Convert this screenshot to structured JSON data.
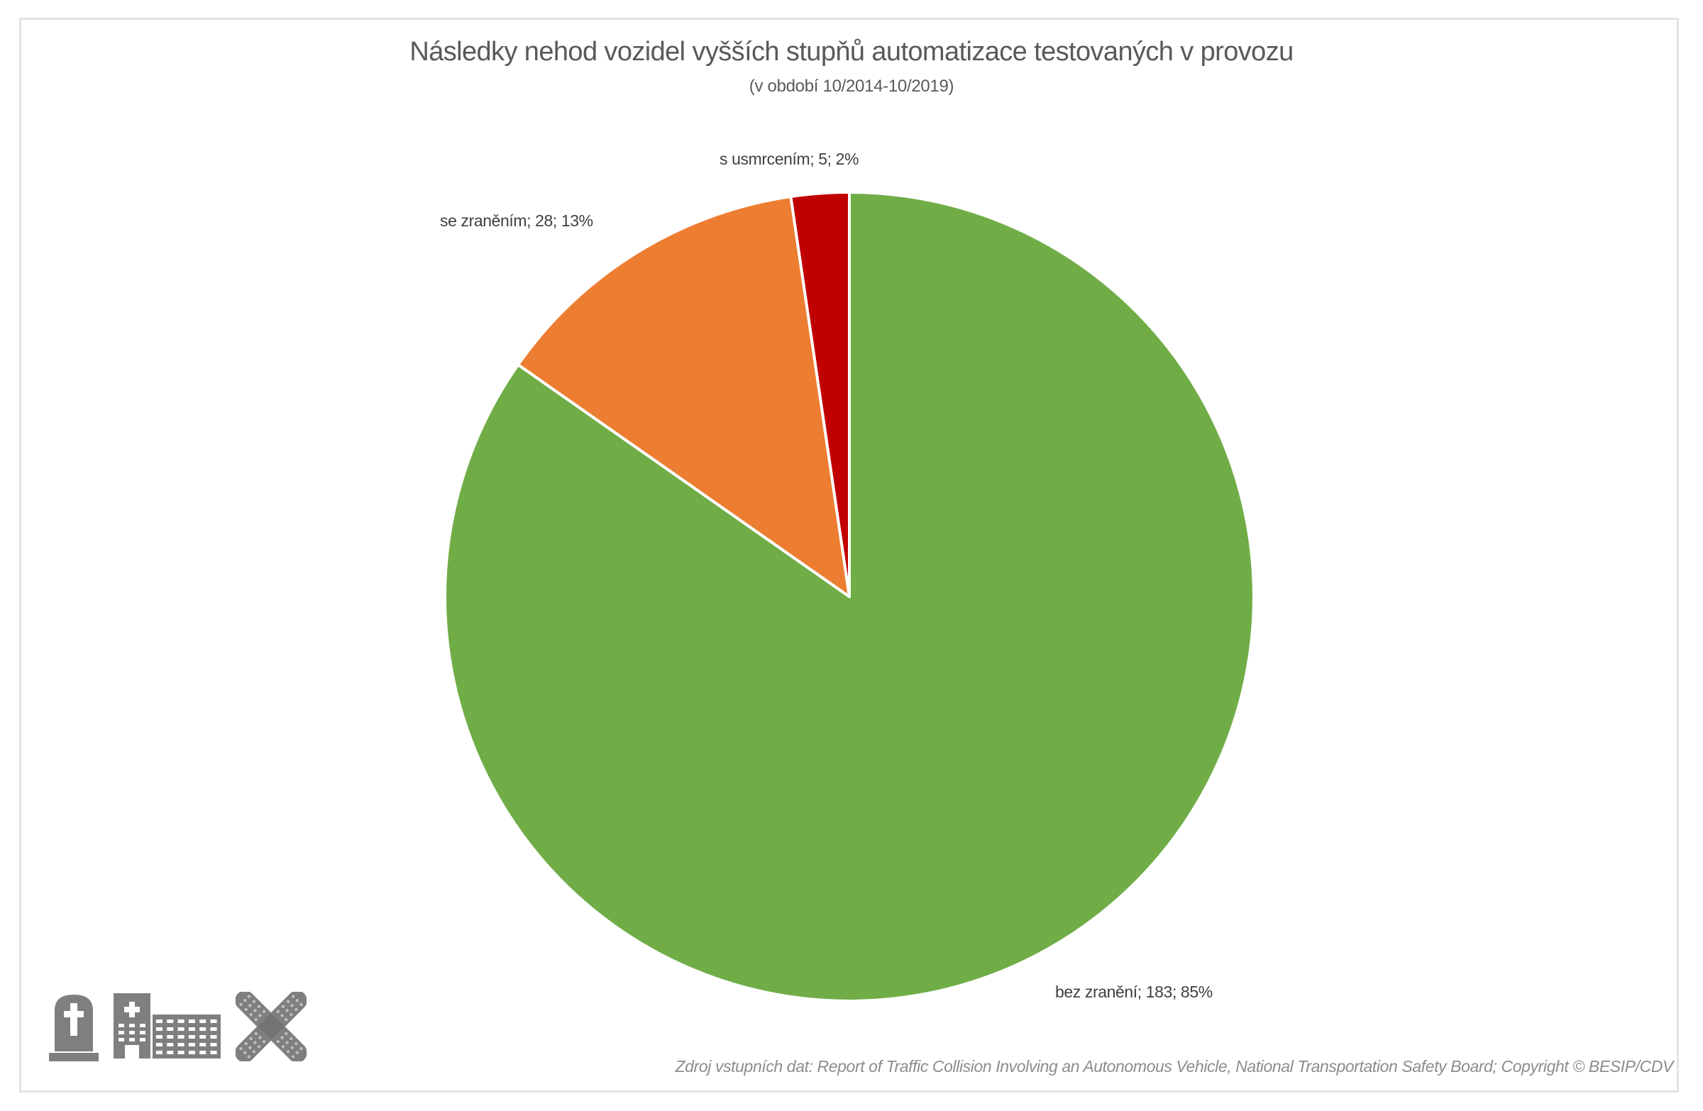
{
  "chart": {
    "title": "Následky nehod vozidel vyšších stupňů automatizace testovaných v provozu",
    "subtitle": "(v období 10/2014-10/2019)",
    "source": "Zdroj vstupních dat: Report of Traffic Collision Involving an Autonomous Vehicle, National Transportation Safety Board; Copyright © BESIP/CDV",
    "labels": {
      "fatal": "s usmrcením; 5; 2%",
      "injury": "se zraněním; 28; 13%",
      "no_injury": "bez zranění; 183; 85%"
    },
    "icons": [
      "tombstone-icon",
      "hospital-icon",
      "bandage-icon"
    ],
    "icon_color": "#7F7F7F"
  },
  "chart_data": {
    "type": "pie",
    "title": "Následky nehod vozidel vyšších stupňů automatizace testovaných v provozu",
    "subtitle": "(v období 10/2014-10/2019)",
    "categories": [
      "bez zranění",
      "se zraněním",
      "s usmrcením"
    ],
    "values": [
      183,
      28,
      5
    ],
    "percentages": [
      85,
      13,
      2
    ],
    "colors": [
      "#70AD47",
      "#ED7D31",
      "#C00000"
    ],
    "data_labels": [
      "bez zranění; 183; 85%",
      "se zraněním; 28; 13%",
      "s usmrcením; 5; 2%"
    ],
    "start_angle": 0,
    "direction": "clockwise",
    "legend": "none"
  }
}
